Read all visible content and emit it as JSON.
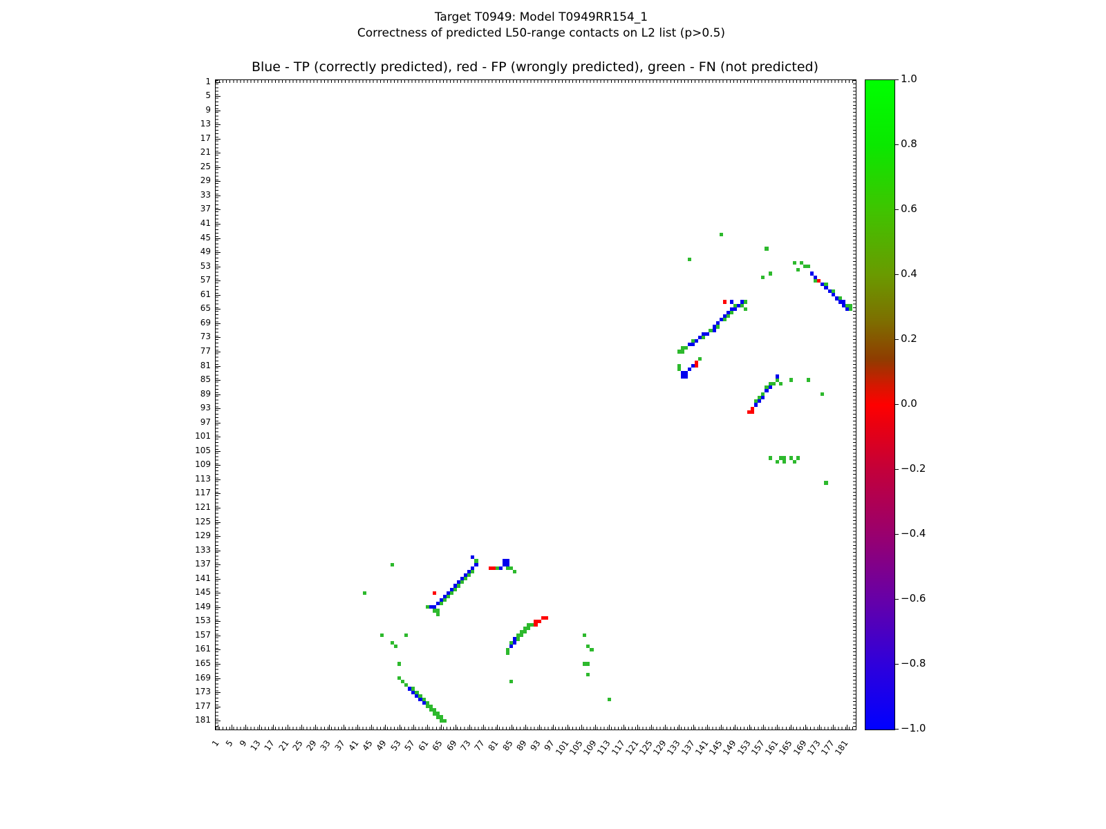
{
  "titles": {
    "line1": "Target T0949: Model T0949RR154_1",
    "line2": "Correctness of predicted L50-range contacts on L2 list (p>0.5)",
    "axes_title": "Blue - TP (correctly predicted), red - FP (wrongly predicted), green - FN (not predicted)"
  },
  "chart_data": {
    "type": "heatmap",
    "title": "Blue - TP (correctly predicted), red - FP (wrongly predicted), green - FN (not predicted)",
    "xlabel": "",
    "ylabel": "",
    "x_range": [
      1,
      183
    ],
    "y_range": [
      1,
      183
    ],
    "y_axis_inverted": true,
    "grid": false,
    "x_ticks": [
      1,
      5,
      9,
      13,
      17,
      21,
      25,
      29,
      33,
      37,
      41,
      45,
      49,
      53,
      57,
      61,
      65,
      69,
      73,
      77,
      81,
      85,
      89,
      93,
      97,
      101,
      105,
      109,
      113,
      117,
      121,
      125,
      129,
      133,
      137,
      141,
      145,
      149,
      153,
      157,
      161,
      165,
      169,
      173,
      177,
      181
    ],
    "y_ticks": [
      1,
      5,
      9,
      13,
      17,
      21,
      25,
      29,
      33,
      37,
      41,
      45,
      49,
      53,
      57,
      61,
      65,
      69,
      73,
      77,
      81,
      85,
      89,
      93,
      97,
      101,
      105,
      109,
      113,
      117,
      121,
      125,
      129,
      133,
      137,
      141,
      145,
      149,
      153,
      157,
      161,
      165,
      169,
      173,
      177,
      181
    ],
    "legend": {
      "tp": "TP (correctly predicted)",
      "fp": "FP (wrongly predicted)",
      "fn": "FN (not predicted)"
    },
    "colors": {
      "tp": "#0000ee",
      "fp": "#ff0000",
      "fn": "#2db92d"
    },
    "colorbar": {
      "tick_labels": [
        "1.0",
        "0.8",
        "0.6",
        "0.4",
        "0.2",
        "0.0",
        "−0.2",
        "−0.4",
        "−0.6",
        "−0.8",
        "−1.0"
      ],
      "range": [
        -1.0,
        1.0
      ],
      "gradient_stops": [
        [
          "0%",
          "#00ff00"
        ],
        [
          "10%",
          "#0ae800"
        ],
        [
          "20%",
          "#3fc400"
        ],
        [
          "30%",
          "#6a9a00"
        ],
        [
          "37%",
          "#7d6f00"
        ],
        [
          "43%",
          "#8f3c00"
        ],
        [
          "47%",
          "#d41800"
        ],
        [
          "50%",
          "#ff0000"
        ],
        [
          "53%",
          "#ea0010"
        ],
        [
          "60%",
          "#c3003a"
        ],
        [
          "70%",
          "#99006e"
        ],
        [
          "80%",
          "#6600a8"
        ],
        [
          "90%",
          "#2f00db"
        ],
        [
          "100%",
          "#0000ff"
        ]
      ]
    },
    "points": [
      [
        "fn",
        145,
        44
      ],
      [
        "fn",
        158,
        48
      ],
      [
        "fn",
        136,
        51
      ],
      [
        "fn",
        166,
        52
      ],
      [
        "fn",
        168,
        52
      ],
      [
        "fn",
        169,
        53
      ],
      [
        "fn",
        170,
        53
      ],
      [
        "fn",
        167,
        54
      ],
      [
        "fn",
        159,
        55
      ],
      [
        "fn",
        157,
        56
      ],
      [
        "tp",
        171,
        55
      ],
      [
        "tp",
        172,
        56
      ],
      [
        "fn",
        172,
        57
      ],
      [
        "fp",
        173,
        57
      ],
      [
        "tp",
        174,
        58
      ],
      [
        "fn",
        175,
        58
      ],
      [
        "tp",
        175,
        59
      ],
      [
        "tp",
        176,
        60
      ],
      [
        "fn",
        177,
        60
      ],
      [
        "tp",
        177,
        61
      ],
      [
        "tp",
        178,
        62
      ],
      [
        "fn",
        179,
        62
      ],
      [
        "tp",
        179,
        63
      ],
      [
        "tp",
        180,
        63
      ],
      [
        "tp",
        180,
        64
      ],
      [
        "fn",
        181,
        64
      ],
      [
        "tp",
        181,
        65
      ],
      [
        "fn",
        182,
        64
      ],
      [
        "fn",
        182,
        65
      ],
      [
        "fn",
        133,
        77
      ],
      [
        "fn",
        134,
        77
      ],
      [
        "fn",
        134,
        76
      ],
      [
        "fn",
        135,
        76
      ],
      [
        "tp",
        136,
        75
      ],
      [
        "tp",
        137,
        75
      ],
      [
        "fn",
        137,
        74
      ],
      [
        "tp",
        138,
        74
      ],
      [
        "tp",
        139,
        73
      ],
      [
        "fn",
        140,
        73
      ],
      [
        "tp",
        140,
        72
      ],
      [
        "tp",
        141,
        72
      ],
      [
        "fn",
        142,
        71
      ],
      [
        "tp",
        143,
        71
      ],
      [
        "tp",
        143,
        70
      ],
      [
        "fn",
        144,
        70
      ],
      [
        "tp",
        144,
        69
      ],
      [
        "tp",
        145,
        68
      ],
      [
        "fn",
        146,
        68
      ],
      [
        "tp",
        146,
        67
      ],
      [
        "fn",
        147,
        67
      ],
      [
        "tp",
        147,
        66
      ],
      [
        "fn",
        148,
        66
      ],
      [
        "tp",
        148,
        65
      ],
      [
        "tp",
        149,
        65
      ],
      [
        "fn",
        149,
        64
      ],
      [
        "tp",
        150,
        64
      ],
      [
        "fp",
        146,
        63
      ],
      [
        "tp",
        148,
        63
      ],
      [
        "fn",
        151,
        64
      ],
      [
        "tp",
        151,
        63
      ],
      [
        "fn",
        152,
        65
      ],
      [
        "fn",
        152,
        63
      ],
      [
        "fn",
        133,
        81
      ],
      [
        "fn",
        133,
        82
      ],
      [
        "tp",
        134,
        83
      ],
      [
        "tp",
        134,
        84
      ],
      [
        "tp",
        135,
        83
      ],
      [
        "tp",
        135,
        84
      ],
      [
        "tp",
        136,
        82
      ],
      [
        "tp",
        137,
        81
      ],
      [
        "fp",
        138,
        80
      ],
      [
        "fp",
        138,
        81
      ],
      [
        "fn",
        139,
        79
      ],
      [
        "fp",
        153,
        94
      ],
      [
        "fp",
        154,
        94
      ],
      [
        "fp",
        154,
        93
      ],
      [
        "tp",
        155,
        92
      ],
      [
        "fn",
        155,
        91
      ],
      [
        "tp",
        156,
        91
      ],
      [
        "fn",
        156,
        90
      ],
      [
        "tp",
        157,
        90
      ],
      [
        "fn",
        157,
        89
      ],
      [
        "tp",
        158,
        88
      ],
      [
        "fn",
        158,
        87
      ],
      [
        "tp",
        159,
        87
      ],
      [
        "fn",
        159,
        86
      ],
      [
        "fn",
        160,
        86
      ],
      [
        "fn",
        161,
        85
      ],
      [
        "tp",
        161,
        84
      ],
      [
        "fn",
        162,
        86
      ],
      [
        "fn",
        165,
        85
      ],
      [
        "fn",
        170,
        85
      ],
      [
        "fn",
        174,
        89
      ],
      [
        "fn",
        159,
        107
      ],
      [
        "fn",
        161,
        108
      ],
      [
        "fn",
        162,
        107
      ],
      [
        "fn",
        163,
        107
      ],
      [
        "fn",
        163,
        108
      ],
      [
        "fn",
        165,
        107
      ],
      [
        "fn",
        166,
        108
      ],
      [
        "fn",
        167,
        107
      ],
      [
        "fn",
        175,
        114
      ],
      [
        "fn",
        43,
        145
      ],
      [
        "fn",
        48,
        157
      ],
      [
        "fn",
        51,
        159
      ],
      [
        "fn",
        52,
        160
      ],
      [
        "fn",
        55,
        157
      ],
      [
        "fn",
        53,
        165
      ],
      [
        "fn",
        51,
        137
      ],
      [
        "fn",
        85,
        170
      ],
      [
        "fn",
        106,
        157
      ],
      [
        "fn",
        107,
        160
      ],
      [
        "fn",
        108,
        161
      ],
      [
        "fn",
        106,
        165
      ],
      [
        "fn",
        107,
        165
      ],
      [
        "fn",
        107,
        168
      ],
      [
        "fn",
        113,
        175
      ],
      [
        "fn",
        61,
        149
      ],
      [
        "tp",
        62,
        149
      ],
      [
        "tp",
        63,
        149
      ],
      [
        "fn",
        63,
        150
      ],
      [
        "fn",
        64,
        150
      ],
      [
        "fn",
        64,
        151
      ],
      [
        "tp",
        64,
        148
      ],
      [
        "fn",
        65,
        148
      ],
      [
        "tp",
        65,
        147
      ],
      [
        "fn",
        66,
        147
      ],
      [
        "tp",
        66,
        146
      ],
      [
        "fp",
        63,
        145
      ],
      [
        "tp",
        67,
        145
      ],
      [
        "fn",
        67,
        146
      ],
      [
        "tp",
        68,
        144
      ],
      [
        "fn",
        68,
        145
      ],
      [
        "tp",
        69,
        143
      ],
      [
        "fn",
        69,
        144
      ],
      [
        "fn",
        70,
        143
      ],
      [
        "tp",
        70,
        142
      ],
      [
        "fn",
        71,
        142
      ],
      [
        "tp",
        71,
        141
      ],
      [
        "fn",
        72,
        141
      ],
      [
        "tp",
        72,
        140
      ],
      [
        "tp",
        73,
        139
      ],
      [
        "fn",
        73,
        140
      ],
      [
        "tp",
        74,
        138
      ],
      [
        "fn",
        74,
        139
      ],
      [
        "tp",
        75,
        137
      ],
      [
        "tp",
        74,
        135
      ],
      [
        "fn",
        75,
        136
      ],
      [
        "fp",
        79,
        138
      ],
      [
        "fp",
        80,
        138
      ],
      [
        "fn",
        81,
        138
      ],
      [
        "tp",
        82,
        138
      ],
      [
        "tp",
        83,
        136
      ],
      [
        "tp",
        84,
        136
      ],
      [
        "tp",
        83,
        137
      ],
      [
        "tp",
        84,
        137
      ],
      [
        "fn",
        85,
        138
      ],
      [
        "fn",
        84,
        138
      ],
      [
        "fn",
        86,
        139
      ],
      [
        "fn",
        84,
        162
      ],
      [
        "fn",
        84,
        161
      ],
      [
        "tp",
        85,
        160
      ],
      [
        "fn",
        85,
        159
      ],
      [
        "tp",
        86,
        159
      ],
      [
        "tp",
        86,
        158
      ],
      [
        "fn",
        87,
        158
      ],
      [
        "fn",
        87,
        157
      ],
      [
        "fn",
        88,
        157
      ],
      [
        "fn",
        88,
        156
      ],
      [
        "fn",
        89,
        156
      ],
      [
        "fn",
        89,
        155
      ],
      [
        "fn",
        90,
        155
      ],
      [
        "fn",
        90,
        154
      ],
      [
        "fn",
        91,
        154
      ],
      [
        "fp",
        92,
        154
      ],
      [
        "fp",
        92,
        153
      ],
      [
        "fp",
        93,
        153
      ],
      [
        "fp",
        94,
        152
      ],
      [
        "fp",
        95,
        152
      ],
      [
        "fn",
        53,
        169
      ],
      [
        "fn",
        54,
        170
      ],
      [
        "fn",
        55,
        171
      ],
      [
        "tp",
        56,
        172
      ],
      [
        "fn",
        57,
        172
      ],
      [
        "tp",
        57,
        173
      ],
      [
        "fn",
        58,
        173
      ],
      [
        "tp",
        58,
        174
      ],
      [
        "fn",
        59,
        174
      ],
      [
        "tp",
        59,
        175
      ],
      [
        "fn",
        60,
        175
      ],
      [
        "tp",
        60,
        176
      ],
      [
        "fn",
        61,
        176
      ],
      [
        "fn",
        61,
        177
      ],
      [
        "fn",
        62,
        177
      ],
      [
        "fn",
        62,
        178
      ],
      [
        "fn",
        63,
        178
      ],
      [
        "fn",
        63,
        179
      ],
      [
        "fn",
        64,
        179
      ],
      [
        "fn",
        64,
        180
      ],
      [
        "fn",
        65,
        180
      ],
      [
        "fn",
        65,
        181
      ],
      [
        "fn",
        66,
        181
      ]
    ]
  }
}
